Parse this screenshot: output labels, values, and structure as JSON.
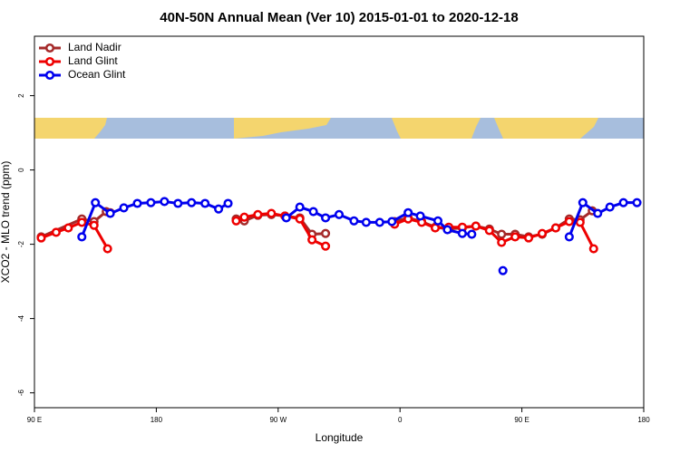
{
  "chart_data": {
    "type": "line",
    "title": "40N-50N Annual Mean (Ver 10)   2015-01-01 to 2020-12-18",
    "xlabel": "Longitude",
    "ylabel": "XCO2 - MLO trend (ppm)",
    "xlim": [
      90,
      540
    ],
    "ylim": [
      -6.4,
      3.6
    ],
    "xticks": [
      {
        "value": 90,
        "label": "90 E"
      },
      180,
      {
        "value": 270,
        "label": "90 W"
      },
      {
        "value": 360,
        "label": "0"
      },
      {
        "value": 450,
        "label": "90 E"
      },
      {
        "value": 540,
        "label": "180"
      }
    ],
    "yticks": [
      -6,
      -4,
      -2,
      0,
      2
    ],
    "legend": "top-left",
    "series": [
      {
        "name": "Land Nadir",
        "color": "#a52a2a",
        "x": [
          95,
          125,
          134,
          143,
          146,
          null,
          239,
          245,
          255,
          265,
          275,
          286,
          295,
          305,
          null,
          356,
          366,
          376,
          386,
          396,
          406,
          416,
          426,
          435,
          445,
          455,
          465,
          475,
          485,
          493,
          502
        ],
        "values": [
          -1.8,
          -1.32,
          -1.39,
          -1.12,
          -1.15,
          null,
          -1.32,
          -1.37,
          -1.22,
          -1.2,
          -1.24,
          -1.29,
          -1.73,
          -1.71,
          null,
          -1.39,
          -1.29,
          -1.39,
          -1.54,
          -1.59,
          -1.56,
          -1.51,
          -1.59,
          -1.73,
          -1.73,
          -1.8,
          -1.73,
          -1.56,
          -1.32,
          -1.34,
          -1.1
        ]
      },
      {
        "name": "Land Glint",
        "color": "#ee0000",
        "x": [
          95,
          106,
          115,
          125,
          134,
          144,
          null,
          239,
          245,
          255,
          265,
          275,
          286,
          295,
          305,
          null,
          356,
          366,
          376,
          386,
          396,
          406,
          416,
          426,
          435,
          445,
          455,
          465,
          475,
          485,
          493,
          503
        ],
        "values": [
          -1.83,
          -1.68,
          -1.56,
          -1.41,
          -1.49,
          -2.12,
          null,
          -1.37,
          -1.27,
          -1.2,
          -1.17,
          -1.24,
          -1.32,
          -1.88,
          -2.05,
          null,
          -1.46,
          -1.32,
          -1.41,
          -1.56,
          -1.54,
          -1.54,
          -1.51,
          -1.63,
          -1.95,
          -1.8,
          -1.83,
          -1.71,
          -1.56,
          -1.39,
          -1.41,
          -2.12
        ]
      },
      {
        "name": "Ocean Glint",
        "color": "#0000ee",
        "x": [
          125,
          135,
          146,
          156,
          166,
          176,
          186,
          196,
          206,
          216,
          226,
          233,
          null,
          276,
          286,
          296,
          305,
          315,
          326,
          335,
          345,
          354,
          366,
          375,
          388,
          395,
          406,
          413,
          null,
          436,
          null,
          485,
          495,
          506,
          515,
          525,
          535
        ],
        "values": [
          -1.8,
          -0.88,
          -1.17,
          -1.02,
          -0.9,
          -0.88,
          -0.85,
          -0.9,
          -0.88,
          -0.9,
          -1.05,
          -0.9,
          null,
          -1.29,
          -1.0,
          -1.12,
          -1.29,
          -1.2,
          -1.37,
          -1.41,
          -1.41,
          -1.39,
          -1.15,
          -1.24,
          -1.37,
          -1.61,
          -1.71,
          -1.73,
          null,
          -2.71,
          null,
          -1.8,
          -0.88,
          -1.17,
          -1.0,
          -0.88,
          -0.88
        ]
      }
    ]
  }
}
